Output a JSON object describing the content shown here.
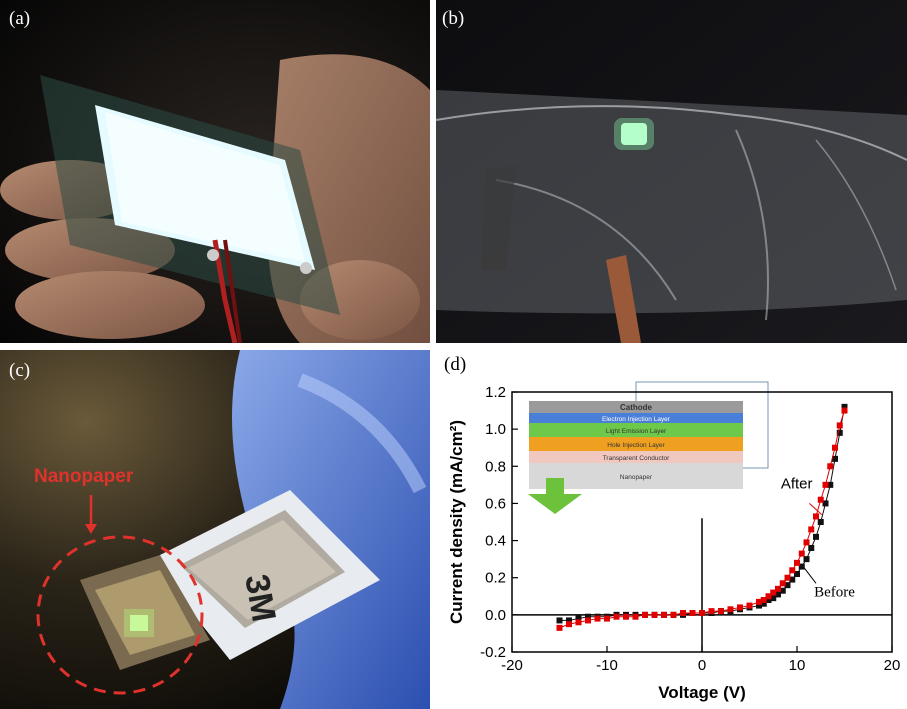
{
  "figure": {
    "panel_a": {
      "label": "(a)"
    },
    "panel_b": {
      "label": "(b)"
    },
    "panel_c": {
      "label": "(c)",
      "annotation": "Nanopaper",
      "tape_logo": "3M"
    },
    "panel_d": {
      "label": "(d)"
    }
  },
  "colors": {
    "before": "#111111",
    "after": "#e00000",
    "annotation": "#e0322c"
  },
  "inset": {
    "layers": [
      "Cathode",
      "Electron Injection Layer",
      "Light Emission Layer",
      "Hole Injection Layer",
      "Transparent Conductor",
      "Nanopaper"
    ]
  },
  "chart_data": {
    "type": "scatter",
    "xlabel": "Voltage (V)",
    "ylabel": "Current density (mA/cm²)",
    "xlim": [
      -20,
      20
    ],
    "ylim": [
      -0.2,
      1.2
    ],
    "xticks": [
      "-20",
      "-10",
      "0",
      "10",
      "20"
    ],
    "yticks": [
      "-0.2",
      "0.0",
      "0.2",
      "0.4",
      "0.6",
      "0.8",
      "1.0",
      "1.2"
    ],
    "grid": false,
    "annotations": [
      "After",
      "Before"
    ],
    "series": [
      {
        "name": "Before",
        "marker": "square",
        "color": "#111111",
        "x": [
          -15,
          -14,
          -13,
          -12,
          -11,
          -10,
          -9,
          -8,
          -7,
          -6,
          -5,
          -4,
          -3,
          -2,
          -1,
          0,
          1,
          2,
          3,
          4,
          5,
          6,
          6.5,
          7,
          7.5,
          8,
          8.5,
          9,
          9.5,
          10,
          10.5,
          11,
          11.5,
          12,
          12.5,
          13,
          13.5,
          14,
          14.5,
          15
        ],
        "y": [
          -0.03,
          -0.03,
          -0.02,
          -0.01,
          -0.01,
          -0.01,
          0,
          0,
          0,
          0,
          0,
          0,
          0,
          0,
          0.01,
          0.01,
          0.01,
          0.02,
          0.02,
          0.03,
          0.04,
          0.05,
          0.06,
          0.08,
          0.09,
          0.11,
          0.13,
          0.16,
          0.19,
          0.22,
          0.26,
          0.3,
          0.36,
          0.42,
          0.5,
          0.6,
          0.7,
          0.84,
          0.98,
          1.12
        ]
      },
      {
        "name": "After",
        "marker": "square",
        "color": "#e00000",
        "x": [
          -15,
          -14,
          -13,
          -12,
          -11,
          -10,
          -9,
          -8,
          -7,
          -6,
          -5,
          -4,
          -3,
          -2,
          -1,
          0,
          1,
          2,
          3,
          4,
          5,
          6,
          6.5,
          7,
          7.5,
          8,
          8.5,
          9,
          9.5,
          10,
          10.5,
          11,
          11.5,
          12,
          12.5,
          13,
          13.5,
          14,
          14.5,
          15
        ],
        "y": [
          -0.07,
          -0.05,
          -0.04,
          -0.03,
          -0.02,
          -0.02,
          -0.01,
          -0.01,
          -0.01,
          0,
          0,
          0,
          0,
          0.01,
          0.01,
          0.01,
          0.02,
          0.02,
          0.03,
          0.04,
          0.05,
          0.07,
          0.08,
          0.1,
          0.12,
          0.14,
          0.17,
          0.2,
          0.24,
          0.28,
          0.33,
          0.39,
          0.46,
          0.53,
          0.62,
          0.7,
          0.8,
          0.9,
          1.02,
          1.1
        ]
      }
    ]
  }
}
